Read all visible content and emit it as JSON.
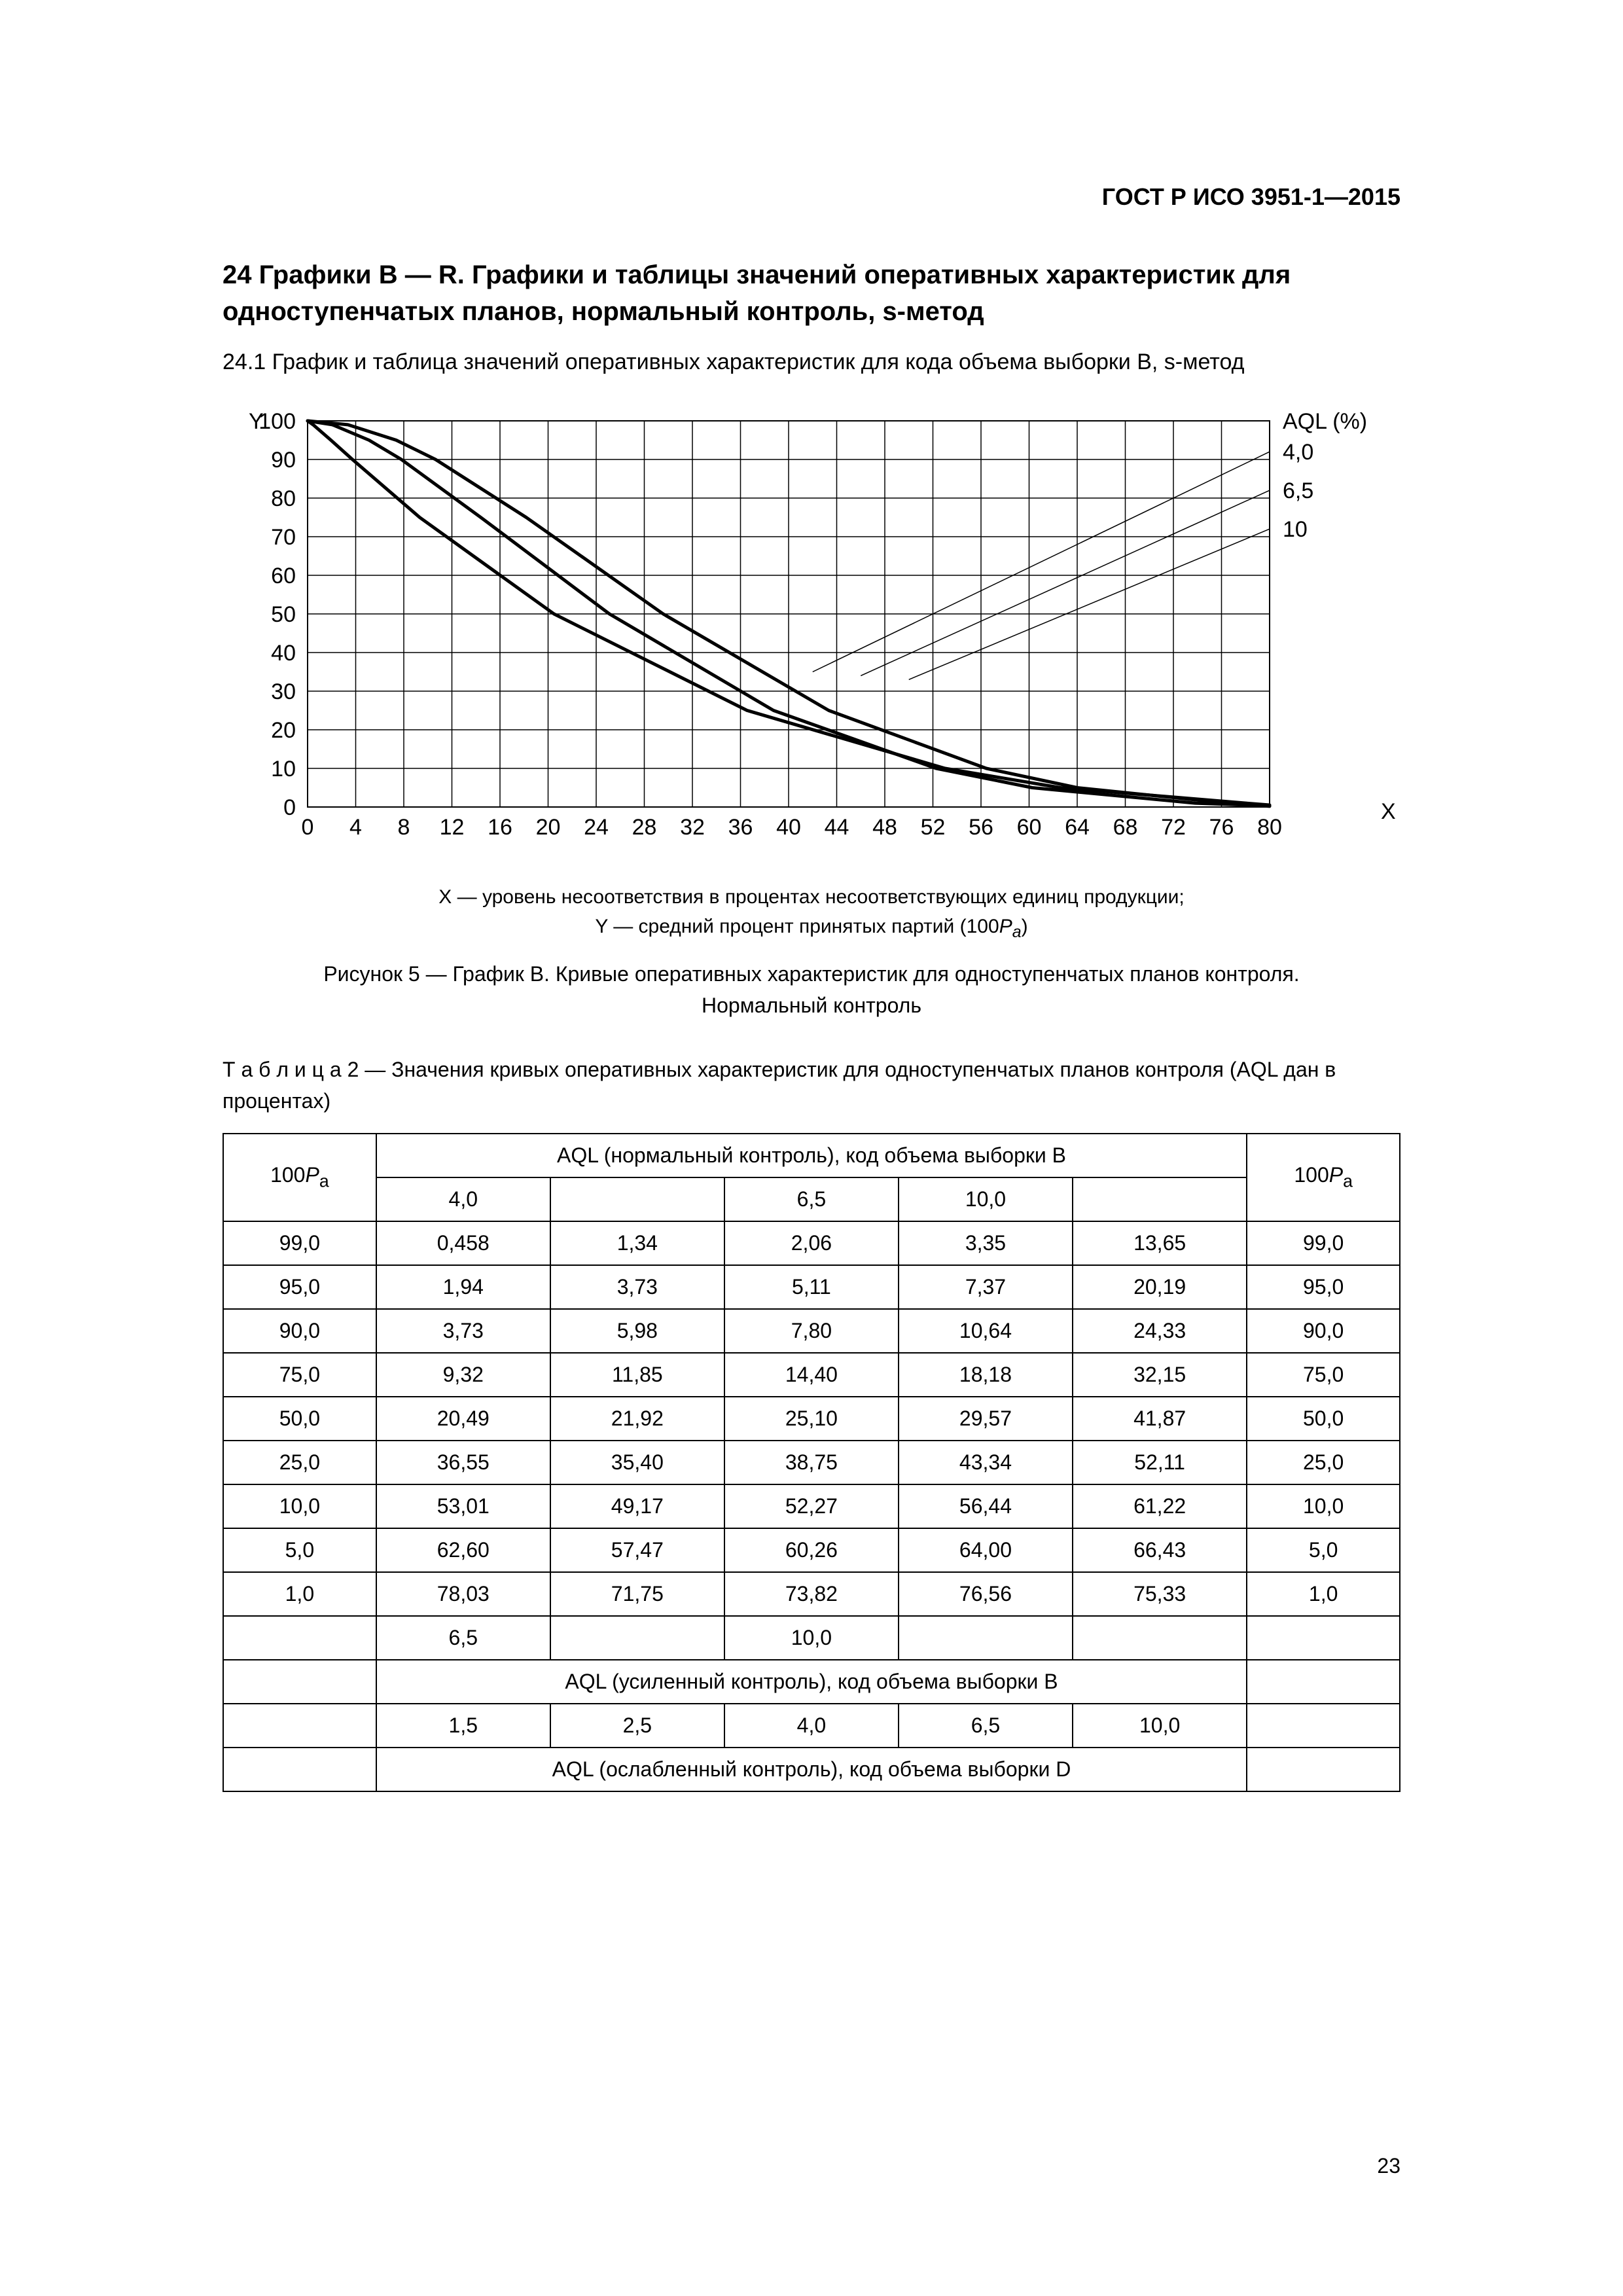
{
  "doc_id": "ГОСТ Р ИСО 3951-1—2015",
  "section_title": "24 Графики B — R. Графики и таблицы значений оперативных характеристик для одноступенчатых планов, нормальный контроль, s-метод",
  "subsection": "24.1 График и таблица значений оперативных характеристик для кода объема выборки B, s-метод",
  "chart": {
    "type": "line",
    "y_label": "Y",
    "x_label": "X",
    "aql_header": "AQL (%)",
    "x_ticks": [
      0,
      4,
      8,
      12,
      16,
      20,
      24,
      28,
      32,
      36,
      40,
      44,
      48,
      52,
      56,
      60,
      64,
      68,
      72,
      76,
      80
    ],
    "y_ticks": [
      0,
      10,
      20,
      30,
      40,
      50,
      60,
      70,
      80,
      90,
      100
    ],
    "xlim": [
      0,
      80
    ],
    "ylim": [
      0,
      100
    ],
    "grid_color": "#000000",
    "background_color": "#ffffff",
    "line_color": "#000000",
    "line_width": 5,
    "label_fontsize": 34,
    "tick_fontsize": 34,
    "series": [
      {
        "label": "4,0",
        "points": [
          [
            0,
            100
          ],
          [
            0.458,
            99
          ],
          [
            1.94,
            95
          ],
          [
            3.73,
            90
          ],
          [
            9.32,
            75
          ],
          [
            20.49,
            50
          ],
          [
            36.55,
            25
          ],
          [
            53.01,
            10
          ],
          [
            62.6,
            5
          ],
          [
            78.03,
            1
          ],
          [
            80,
            0.5
          ]
        ]
      },
      {
        "label": "6,5",
        "points": [
          [
            0,
            100
          ],
          [
            2.06,
            99
          ],
          [
            5.11,
            95
          ],
          [
            7.8,
            90
          ],
          [
            14.4,
            75
          ],
          [
            25.1,
            50
          ],
          [
            38.75,
            25
          ],
          [
            52.27,
            10
          ],
          [
            60.26,
            5
          ],
          [
            73.82,
            1
          ],
          [
            80,
            0.3
          ]
        ]
      },
      {
        "label": "10",
        "points": [
          [
            0,
            100
          ],
          [
            3.35,
            99
          ],
          [
            7.37,
            95
          ],
          [
            10.64,
            90
          ],
          [
            18.18,
            75
          ],
          [
            29.57,
            50
          ],
          [
            43.34,
            25
          ],
          [
            56.44,
            10
          ],
          [
            64.0,
            5
          ],
          [
            76.56,
            1
          ],
          [
            80,
            0.2
          ]
        ]
      }
    ],
    "leader_lines": [
      {
        "label": "4,0",
        "from": [
          42,
          35
        ],
        "to": [
          80,
          92
        ]
      },
      {
        "label": "6,5",
        "from": [
          46,
          34
        ],
        "to": [
          80,
          82
        ]
      },
      {
        "label": "10",
        "from": [
          50,
          33
        ],
        "to": [
          80,
          72
        ]
      }
    ]
  },
  "chart_legend_line1": "X — уровень несоответствия в процентах несоответствующих единиц продукции;",
  "chart_legend_line2_a": "Y — средний процент принятых партий (100",
  "chart_legend_line2_b": ")",
  "chart_caption_line1": "Рисунок 5 — График B. Кривые оперативных характеристик для одноступенчатых планов контроля.",
  "chart_caption_line2": "Нормальный контроль",
  "table_caption_prefix": "Т а б л и ц а",
  "table_caption_rest": " 2 — Значения кривых оперативных характеристик для одноступенчатых планов контроля (AQL дан в процентах)",
  "table": {
    "pa_label_a": "100",
    "pa_label_b": "P",
    "pa_label_c": "a",
    "header_normal": "AQL (нормальный контроль), код объема выборки B",
    "header_tight": "AQL (усиленный контроль), код объема выборки B",
    "header_reduced": "AQL (ослабленный контроль), код объема выборки D",
    "cols_normal": [
      "4,0",
      "",
      "6,5",
      "10,0",
      ""
    ],
    "rows": [
      {
        "pa": "99,0",
        "v": [
          "0,458",
          "1,34",
          "2,06",
          "3,35",
          "13,65"
        ]
      },
      {
        "pa": "95,0",
        "v": [
          "1,94",
          "3,73",
          "5,11",
          "7,37",
          "20,19"
        ]
      },
      {
        "pa": "90,0",
        "v": [
          "3,73",
          "5,98",
          "7,80",
          "10,64",
          "24,33"
        ]
      },
      {
        "pa": "75,0",
        "v": [
          "9,32",
          "11,85",
          "14,40",
          "18,18",
          "32,15"
        ]
      },
      {
        "pa": "50,0",
        "v": [
          "20,49",
          "21,92",
          "25,10",
          "29,57",
          "41,87"
        ]
      },
      {
        "pa": "25,0",
        "v": [
          "36,55",
          "35,40",
          "38,75",
          "43,34",
          "52,11"
        ]
      },
      {
        "pa": "10,0",
        "v": [
          "53,01",
          "49,17",
          "52,27",
          "56,44",
          "61,22"
        ]
      },
      {
        "pa": "5,0",
        "v": [
          "62,60",
          "57,47",
          "60,26",
          "64,00",
          "66,43"
        ]
      },
      {
        "pa": "1,0",
        "v": [
          "78,03",
          "71,75",
          "73,82",
          "76,56",
          "75,33"
        ]
      }
    ],
    "row_extra": [
      "6,5",
      "",
      "10,0",
      "",
      ""
    ],
    "cols_tight": [
      "1,5",
      "2,5",
      "4,0",
      "6,5",
      "10,0"
    ]
  },
  "page_number": "23"
}
